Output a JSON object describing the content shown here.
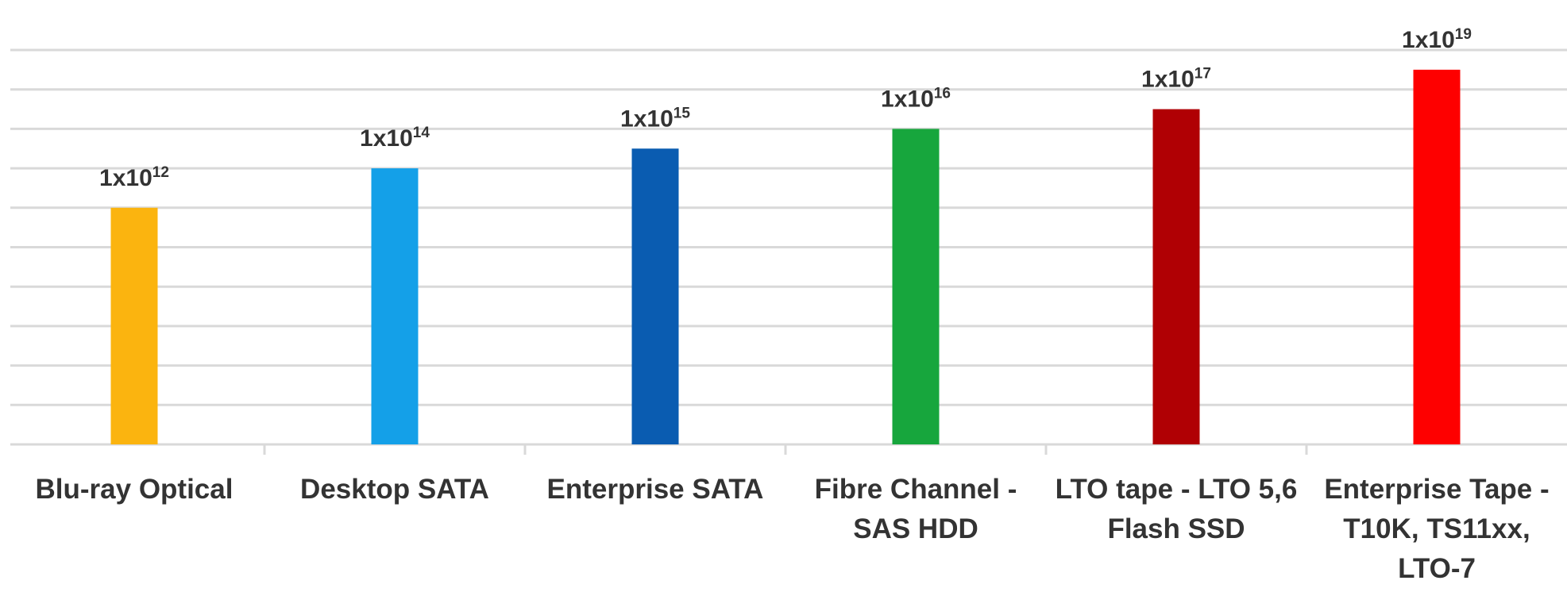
{
  "chart_data": {
    "type": "bar",
    "log_scale": true,
    "grid": true,
    "categories": [
      [
        "Blu-ray Optical"
      ],
      [
        "Desktop SATA"
      ],
      [
        "Enterprise SATA"
      ],
      [
        "Fibre Channel -",
        "SAS HDD"
      ],
      [
        "LTO tape - LTO 5,6",
        "Flash SSD"
      ],
      [
        "Enterprise Tape -",
        "T10K,  TS11xx,",
        "LTO-7"
      ]
    ],
    "values": [
      1000000000000.0,
      100000000000000.0,
      1000000000000000.0,
      1e+16,
      1e+17,
      1e+19
    ],
    "value_labels": [
      {
        "base": "1x10",
        "exponent": "12"
      },
      {
        "base": "1x10",
        "exponent": "14"
      },
      {
        "base": "1x10",
        "exponent": "15"
      },
      {
        "base": "1x10",
        "exponent": "16"
      },
      {
        "base": "1x10",
        "exponent": "17"
      },
      {
        "base": "1x10",
        "exponent": "19"
      }
    ],
    "colors": [
      "#fbb40f",
      "#14a0e8",
      "#0a5cb1",
      "#17a63d",
      "#b00004",
      "#fe0000"
    ],
    "ylim": [
      1,
      1e+20
    ],
    "yticks": [
      1,
      100,
      10000,
      1000000,
      100000000,
      10000000000,
      1000000000000,
      100000000000000,
      10000000000000000,
      1000000000000000000,
      1e+20
    ]
  }
}
